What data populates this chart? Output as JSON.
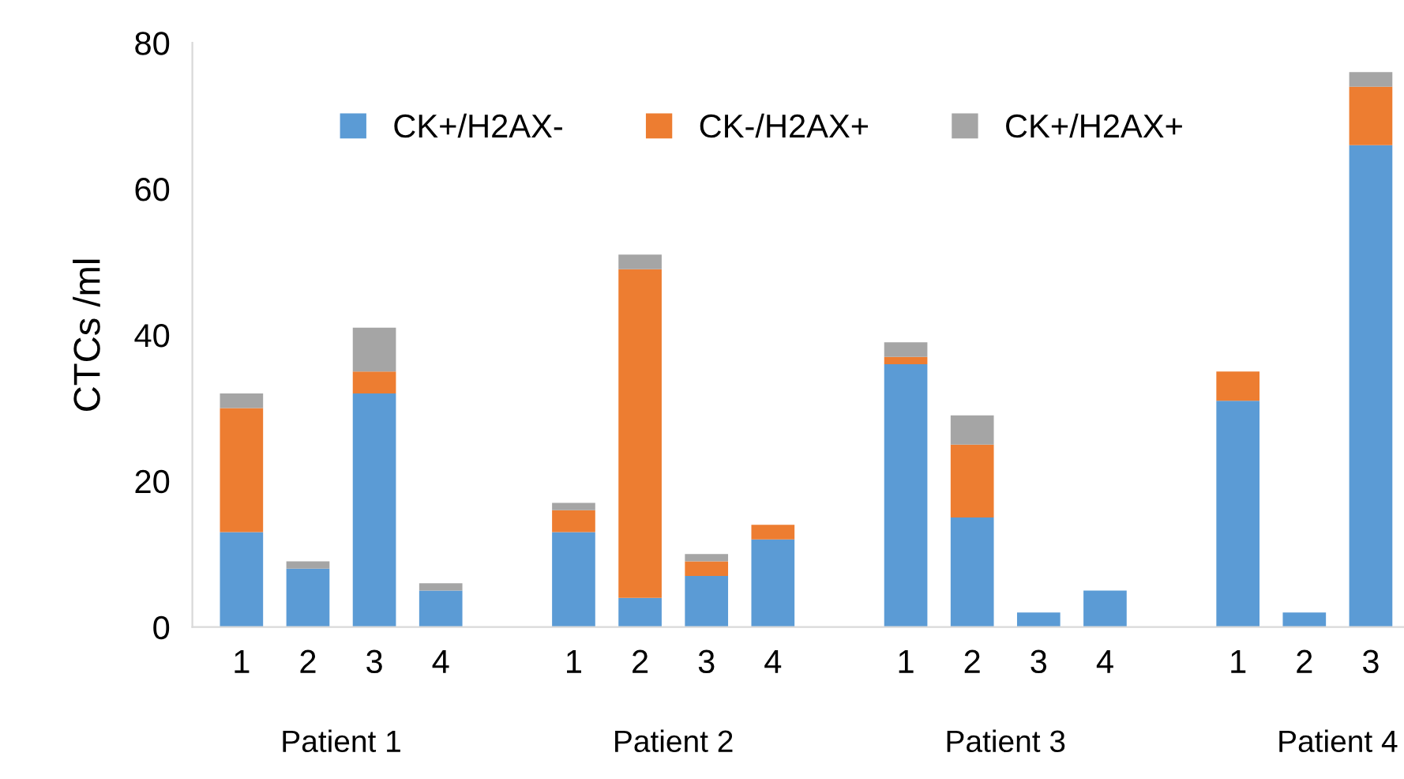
{
  "chart_data": {
    "type": "bar",
    "stacked": true,
    "ylabel": "CTCs /ml",
    "categories": [
      "1",
      "2",
      "3",
      "4",
      null,
      "1",
      "2",
      "3",
      "4",
      null,
      "1",
      "2",
      "3",
      "4",
      null,
      "1",
      "2",
      "3"
    ],
    "series": [
      {
        "name": "CK+/H2AX-",
        "color": "#5b9bd5",
        "values": [
          13,
          8,
          32,
          5,
          null,
          13,
          4,
          7,
          12,
          null,
          36,
          15,
          2,
          5,
          null,
          31,
          2,
          66
        ]
      },
      {
        "name": "CK-/H2AX+",
        "color": "#ed7d31",
        "values": [
          17,
          0,
          3,
          0,
          null,
          3,
          45,
          2,
          2,
          null,
          1,
          10,
          0,
          0,
          null,
          4,
          0,
          8
        ]
      },
      {
        "name": "CK+/H2AX+",
        "color": "#a5a5a5",
        "values": [
          2,
          1,
          6,
          1,
          null,
          1,
          2,
          1,
          0,
          null,
          2,
          4,
          0,
          0,
          null,
          0,
          0,
          2
        ]
      }
    ],
    "annotations": [
      "Patient 1",
      "Patient 2",
      "Patient 3",
      "Patient 4"
    ],
    "ylim": [
      0,
      80
    ],
    "yticks": [
      0,
      20,
      40,
      60,
      80
    ],
    "grid": false,
    "legend": "top"
  }
}
